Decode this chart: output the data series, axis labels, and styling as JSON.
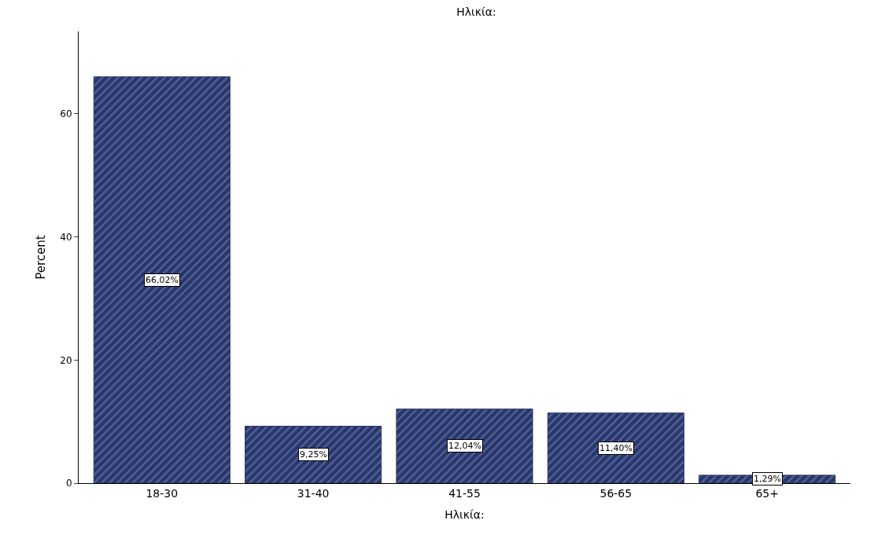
{
  "chart_data": {
    "type": "bar",
    "title": "Ηλικία:",
    "xlabel": "Ηλικία:",
    "ylabel": "Percent",
    "categories": [
      "18-30",
      "31-40",
      "41-55",
      "56-65",
      "65+"
    ],
    "values": [
      66.02,
      9.25,
      12.04,
      11.4,
      1.29
    ],
    "value_labels": [
      "66,02%",
      "9,25%",
      "12,04%",
      "11,40%",
      "1,29%"
    ],
    "color": "#2b3566",
    "ylim": [
      0,
      73.4
    ],
    "yticks": [
      0,
      20,
      40,
      60
    ]
  }
}
